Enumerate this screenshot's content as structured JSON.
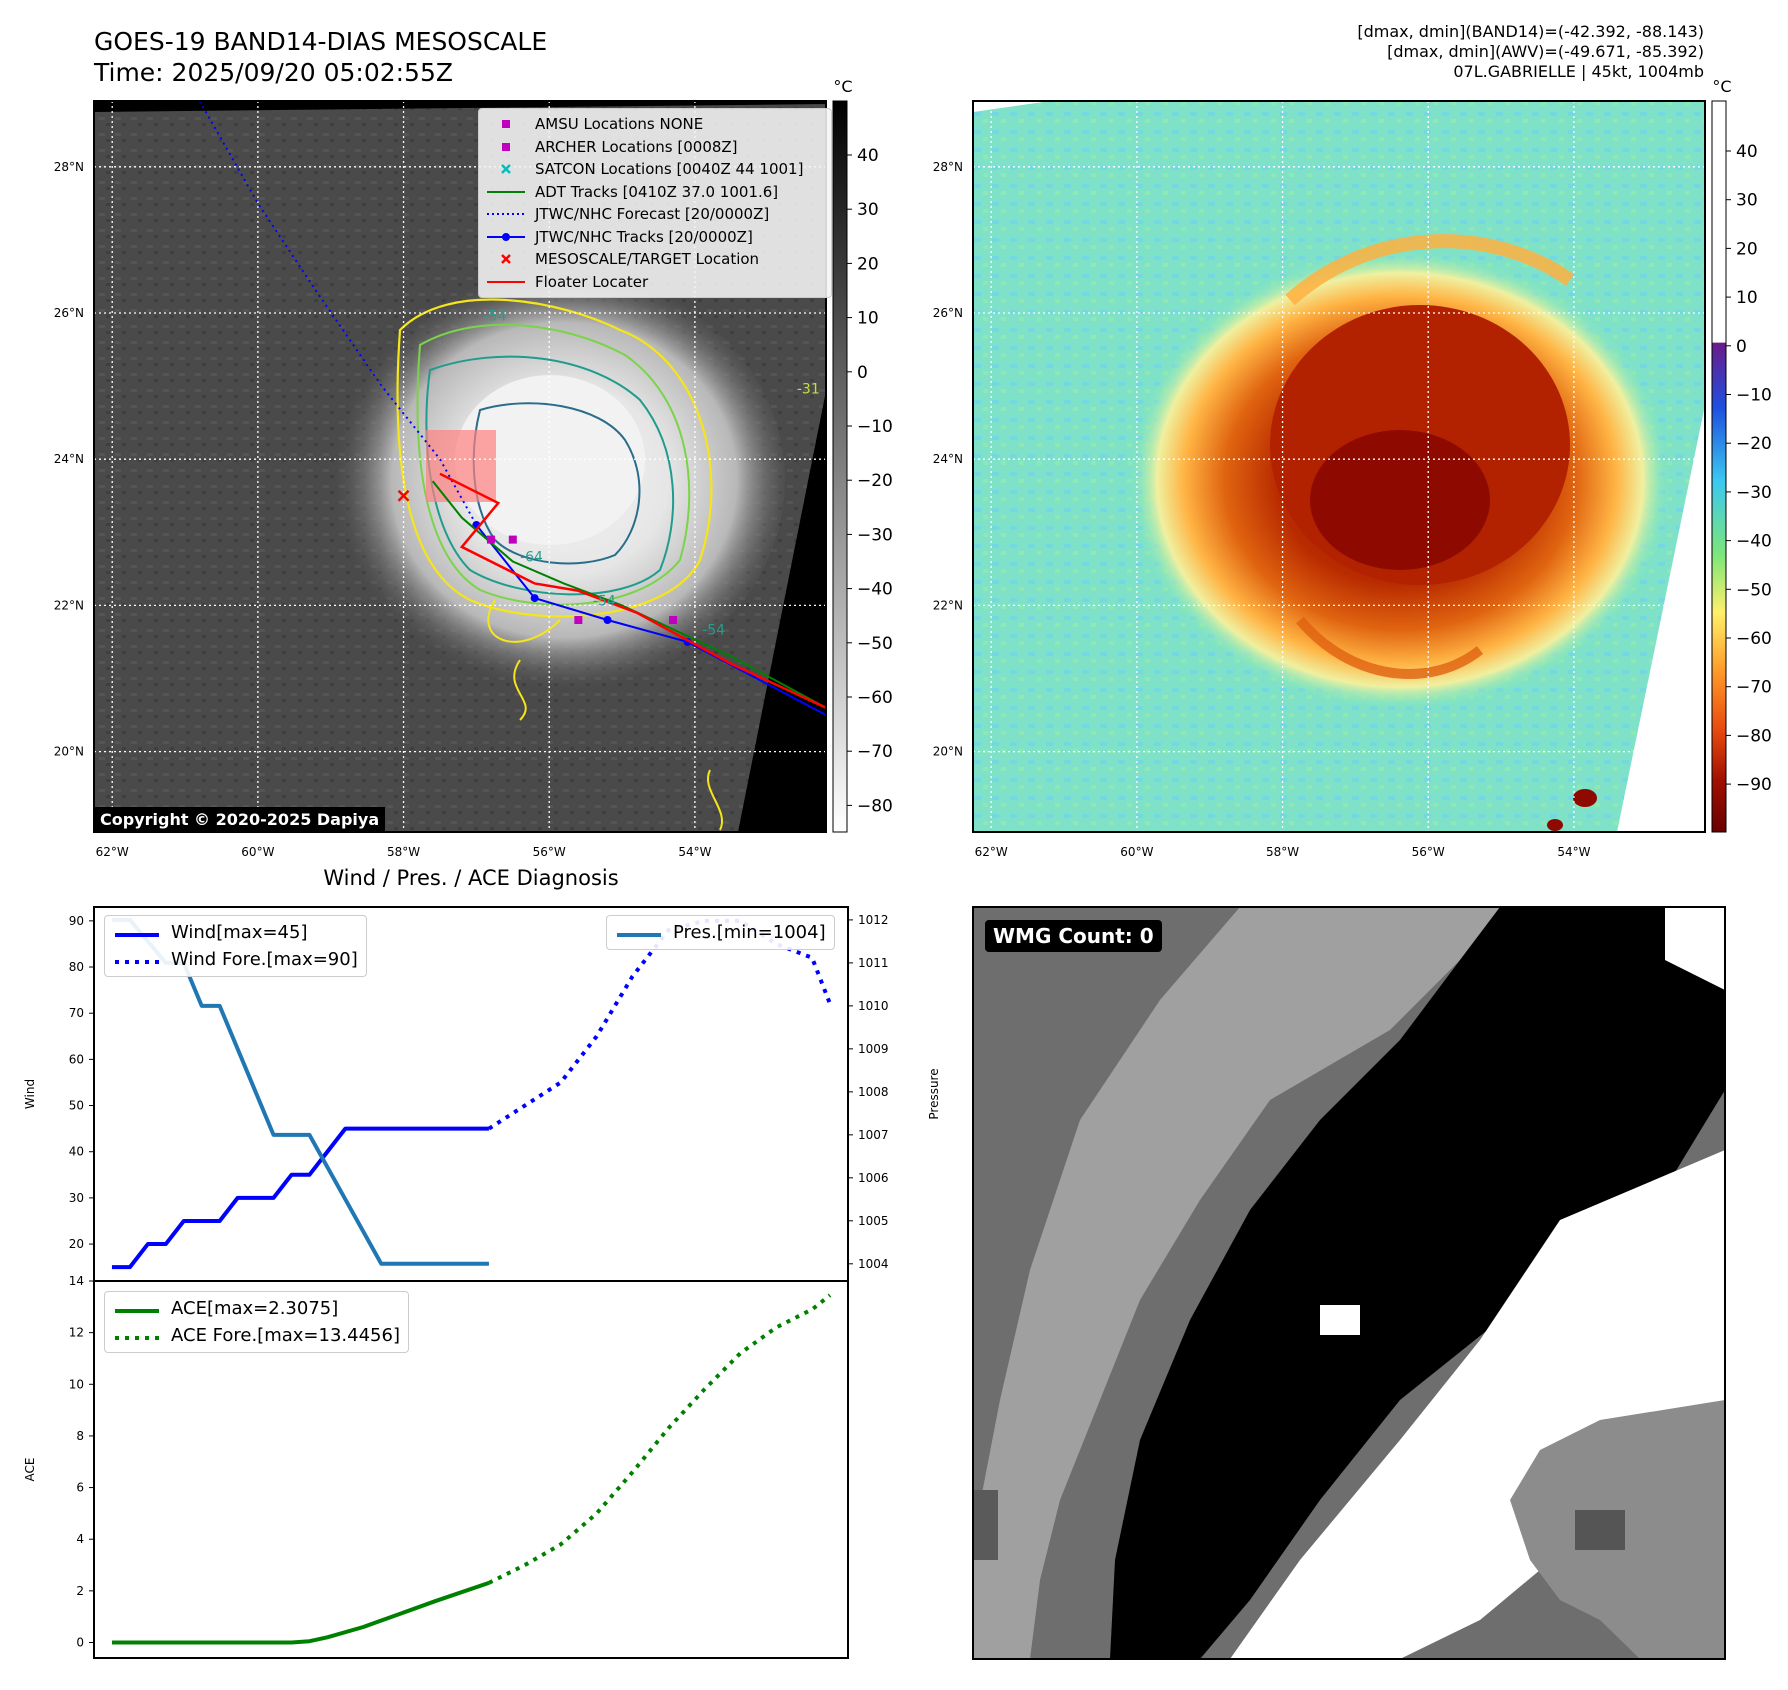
{
  "header": {
    "title_line1": "GOES-19 BAND14-DIAS MESOSCALE",
    "title_line2": "Time: 2025/09/20 05:02:55Z",
    "info_line1": "[dmax, dmin](BAND14)=(-42.392, -88.143)",
    "info_line2": "[dmax, dmin](AWV)=(-49.671, -85.392)",
    "info_line3": "07L.GABRIELLE | 45kt, 1004mb"
  },
  "copyright": "Copyright © 2020-2025 Dapiya",
  "map": {
    "lat_labels": [
      "28°N",
      "26°N",
      "24°N",
      "22°N",
      "20°N"
    ],
    "lat_values": [
      28,
      26,
      24,
      22,
      20
    ],
    "lon_labels": [
      "62°W",
      "60°W",
      "58°W",
      "56°W",
      "54°W"
    ],
    "lon_values": [
      -62,
      -60,
      -58,
      -56,
      -54
    ],
    "extent": {
      "lon_min": -62.25,
      "lon_max": -52.2,
      "lat_min": 18.9,
      "lat_max": 28.9
    },
    "contour_labels": [
      "-54",
      "-31",
      "-64",
      "-54",
      "-54"
    ]
  },
  "legend": {
    "items": [
      {
        "label": "AMSU Locations NONE",
        "symbol": "square",
        "color": "#bf00bf"
      },
      {
        "label": "ARCHER Locations [0008Z]",
        "symbol": "square",
        "color": "#bf00bf"
      },
      {
        "label": "SATCON Locations [0040Z 44 1001]",
        "symbol": "x",
        "color": "#00bfbf"
      },
      {
        "label": "ADT Tracks [0410Z 37.0 1001.6]",
        "symbol": "line",
        "color": "#008000"
      },
      {
        "label": "JTWC/NHC Forecast [20/0000Z]",
        "symbol": "dotted",
        "color": "#0000ff"
      },
      {
        "label": "JTWC/NHC Tracks [20/0000Z]",
        "symbol": "line-dot",
        "color": "#0000ff"
      },
      {
        "label": "MESOSCALE/TARGET Location",
        "symbol": "x",
        "color": "#ff0000"
      },
      {
        "label": "Floater Locater",
        "symbol": "line",
        "color": "#ff0000"
      }
    ]
  },
  "colorbar_ir": {
    "unit": "°C",
    "ticks": [
      "40",
      "30",
      "20",
      "10",
      "0",
      "−10",
      "−20",
      "−30",
      "−40",
      "−50",
      "−60",
      "−70",
      "−80"
    ]
  },
  "colorbar_awv": {
    "unit": "°C",
    "ticks": [
      "40",
      "30",
      "20",
      "10",
      "0",
      "−10",
      "−20",
      "−30",
      "−40",
      "−50",
      "−60",
      "−70",
      "−80",
      "−90"
    ]
  },
  "diagnosis_title": "Wind / Pres. / ACE Diagnosis",
  "wmg_label": "WMG Count: 0",
  "chart_data": [
    {
      "type": "line",
      "title": "Wind / Pres. / ACE Diagnosis",
      "ylabel": "Wind",
      "y2label": "Pressure",
      "ylim": [
        12,
        93
      ],
      "y2lim": [
        1003.6,
        1012.3
      ],
      "yticks": [
        "20",
        "30",
        "40",
        "50",
        "60",
        "70",
        "80",
        "90"
      ],
      "y2ticks": [
        "1004",
        "1005",
        "1006",
        "1007",
        "1008",
        "1009",
        "1010",
        "1011",
        "1012"
      ],
      "xlim": [
        0,
        42
      ],
      "series": [
        {
          "name": "Wind[max=45]",
          "style": "solid",
          "color": "#0000ff",
          "x": [
            1,
            2,
            3,
            4,
            5,
            6,
            7,
            8,
            9,
            10,
            11,
            12,
            13,
            14,
            17,
            22
          ],
          "values": [
            15,
            15,
            20,
            20,
            25,
            25,
            25,
            30,
            30,
            30,
            35,
            35,
            40,
            45,
            45,
            45
          ]
        },
        {
          "name": "Wind Fore.[max=90]",
          "style": "dotted",
          "color": "#0000ff",
          "x": [
            22,
            24,
            26,
            28,
            30,
            32,
            34,
            36,
            38,
            40,
            41
          ],
          "values": [
            45,
            50,
            55,
            65,
            78,
            88,
            90,
            90,
            85,
            82,
            72
          ]
        },
        {
          "name": "Pres.[min=1004]",
          "style": "solid",
          "color": "#1f77b4",
          "axis": "right",
          "x": [
            1,
            2,
            4,
            5,
            6,
            7,
            8,
            9,
            10,
            11,
            12,
            14,
            16,
            22
          ],
          "values": [
            1012,
            1012,
            1011,
            1011,
            1010,
            1010,
            1009,
            1008,
            1007,
            1007,
            1007,
            1005.5,
            1004,
            1004
          ]
        }
      ]
    },
    {
      "type": "line",
      "ylabel": "ACE",
      "ylim": [
        -0.6,
        14
      ],
      "yticks": [
        "0",
        "2",
        "4",
        "6",
        "8",
        "10",
        "12",
        "14"
      ],
      "xlim": [
        0,
        42
      ],
      "series": [
        {
          "name": "ACE[max=2.3075]",
          "style": "solid",
          "color": "#008000",
          "x": [
            1,
            3,
            6,
            9,
            11,
            12,
            13,
            15,
            17,
            19,
            22
          ],
          "values": [
            0,
            0,
            0,
            0,
            0,
            0.05,
            0.2,
            0.6,
            1.1,
            1.6,
            2.31
          ]
        },
        {
          "name": "ACE Fore.[max=13.4456]",
          "style": "dotted",
          "color": "#008000",
          "x": [
            22,
            24,
            26,
            28,
            30,
            32,
            34,
            36,
            38,
            40,
            41
          ],
          "values": [
            2.31,
            3.0,
            3.8,
            5.0,
            6.6,
            8.3,
            9.8,
            11.2,
            12.2,
            12.9,
            13.45
          ]
        }
      ]
    }
  ]
}
